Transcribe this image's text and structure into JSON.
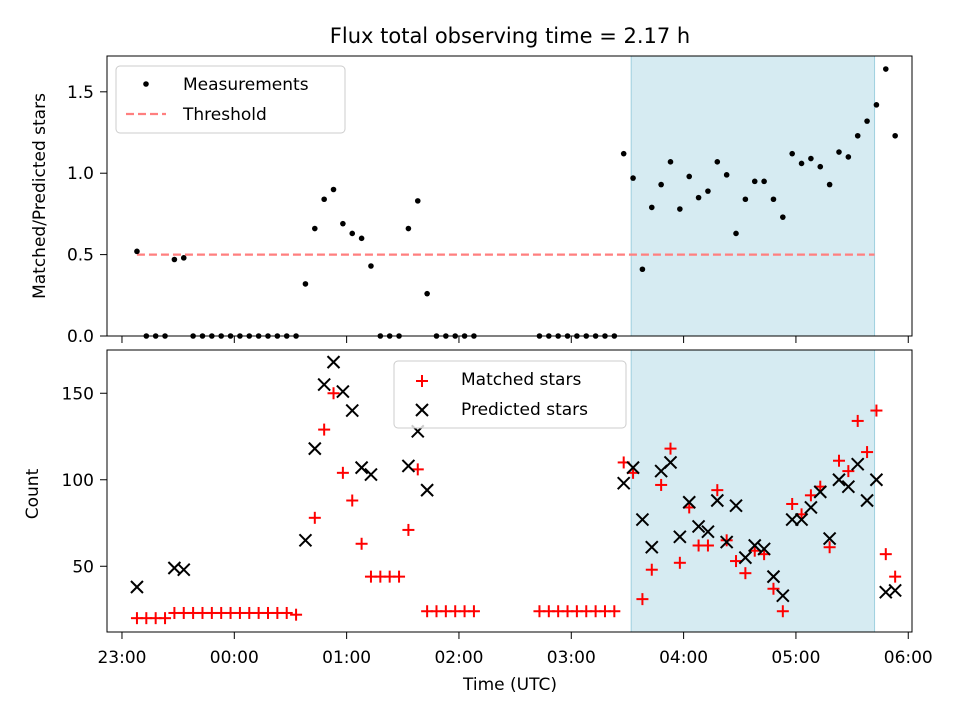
{
  "chart_data": [
    {
      "type": "scatter",
      "title": "Flux total observing time = 2.17 h",
      "ylabel": "Matched/Predicted stars",
      "xlim": [
        "22:52",
        "06:02"
      ],
      "ylim": [
        0,
        1.72
      ],
      "yticks": [
        "0.0",
        "0.5",
        "1.0",
        "1.5"
      ],
      "highlight_span": [
        "03:32",
        "05:42"
      ],
      "legend": {
        "placement": "upper left",
        "entries": [
          "Measurements",
          "Threshold"
        ]
      },
      "threshold": {
        "name": "Threshold",
        "value": 0.5,
        "x_start": "23:08",
        "x_end": "05:42",
        "color": "#ff7f7f"
      },
      "series": [
        {
          "name": "Measurements",
          "color": "#000000",
          "points": [
            [
              "23:08",
              0.52
            ],
            [
              "23:13",
              0.0
            ],
            [
              "23:18",
              0.0
            ],
            [
              "23:23",
              0.0
            ],
            [
              "23:28",
              0.47
            ],
            [
              "23:33",
              0.48
            ],
            [
              "23:38",
              0.0
            ],
            [
              "23:43",
              0.0
            ],
            [
              "23:48",
              0.0
            ],
            [
              "23:53",
              0.0
            ],
            [
              "23:58",
              0.0
            ],
            [
              "00:03",
              0.0
            ],
            [
              "00:08",
              0.0
            ],
            [
              "00:13",
              0.0
            ],
            [
              "00:18",
              0.0
            ],
            [
              "00:23",
              0.0
            ],
            [
              "00:28",
              0.0
            ],
            [
              "00:33",
              0.0
            ],
            [
              "00:38",
              0.32
            ],
            [
              "00:43",
              0.66
            ],
            [
              "00:48",
              0.84
            ],
            [
              "00:53",
              0.9
            ],
            [
              "00:58",
              0.69
            ],
            [
              "01:03",
              0.63
            ],
            [
              "01:08",
              0.6
            ],
            [
              "01:13",
              0.43
            ],
            [
              "01:18",
              0.0
            ],
            [
              "01:23",
              0.0
            ],
            [
              "01:28",
              0.0
            ],
            [
              "01:33",
              0.66
            ],
            [
              "01:38",
              0.83
            ],
            [
              "01:43",
              0.26
            ],
            [
              "01:48",
              0.0
            ],
            [
              "01:53",
              0.0
            ],
            [
              "01:58",
              0.0
            ],
            [
              "02:03",
              0.0
            ],
            [
              "02:08",
              0.0
            ],
            [
              "02:43",
              0.0
            ],
            [
              "02:48",
              0.0
            ],
            [
              "02:53",
              0.0
            ],
            [
              "02:58",
              0.0
            ],
            [
              "03:03",
              0.0
            ],
            [
              "03:08",
              0.0
            ],
            [
              "03:13",
              0.0
            ],
            [
              "03:18",
              0.0
            ],
            [
              "03:23",
              0.0
            ],
            [
              "03:28",
              1.12
            ],
            [
              "03:33",
              0.97
            ],
            [
              "03:38",
              0.41
            ],
            [
              "03:43",
              0.79
            ],
            [
              "03:48",
              0.93
            ],
            [
              "03:53",
              1.07
            ],
            [
              "03:58",
              0.78
            ],
            [
              "04:03",
              0.98
            ],
            [
              "04:08",
              0.85
            ],
            [
              "04:13",
              0.89
            ],
            [
              "04:18",
              1.07
            ],
            [
              "04:23",
              0.99
            ],
            [
              "04:28",
              0.63
            ],
            [
              "04:33",
              0.84
            ],
            [
              "04:38",
              0.95
            ],
            [
              "04:43",
              0.95
            ],
            [
              "04:48",
              0.84
            ],
            [
              "04:53",
              0.73
            ],
            [
              "04:58",
              1.12
            ],
            [
              "05:03",
              1.06
            ],
            [
              "05:08",
              1.09
            ],
            [
              "05:13",
              1.04
            ],
            [
              "05:18",
              0.93
            ],
            [
              "05:23",
              1.13
            ],
            [
              "05:28",
              1.1
            ],
            [
              "05:33",
              1.23
            ],
            [
              "05:38",
              1.32
            ],
            [
              "05:43",
              1.42
            ],
            [
              "05:48",
              1.64
            ],
            [
              "05:53",
              1.23
            ]
          ]
        }
      ]
    },
    {
      "type": "scatter",
      "xlabel": "Time (UTC)",
      "ylabel": "Count",
      "xlim": [
        "22:52",
        "06:02"
      ],
      "ylim": [
        12,
        175
      ],
      "xticks": [
        "23:00",
        "00:00",
        "01:00",
        "02:00",
        "03:00",
        "04:00",
        "05:00",
        "06:00"
      ],
      "yticks": [
        "50",
        "100",
        "150"
      ],
      "highlight_span": [
        "03:32",
        "05:42"
      ],
      "legend": {
        "placement": "upper center",
        "entries": [
          "Matched stars",
          "Predicted stars"
        ]
      },
      "series": [
        {
          "name": "Matched stars",
          "marker": "plus",
          "color": "#ff0000",
          "points": [
            [
              "23:08",
              20
            ],
            [
              "23:13",
              20
            ],
            [
              "23:18",
              20
            ],
            [
              "23:23",
              20
            ],
            [
              "23:28",
              23
            ],
            [
              "23:33",
              23
            ],
            [
              "23:38",
              23
            ],
            [
              "23:43",
              23
            ],
            [
              "23:48",
              23
            ],
            [
              "23:53",
              23
            ],
            [
              "23:58",
              23
            ],
            [
              "00:03",
              23
            ],
            [
              "00:08",
              23
            ],
            [
              "00:13",
              23
            ],
            [
              "00:18",
              23
            ],
            [
              "00:23",
              23
            ],
            [
              "00:28",
              23
            ],
            [
              "00:33",
              22
            ],
            [
              "00:43",
              78
            ],
            [
              "00:48",
              129
            ],
            [
              "00:53",
              150
            ],
            [
              "00:58",
              104
            ],
            [
              "01:03",
              88
            ],
            [
              "01:08",
              63
            ],
            [
              "01:13",
              44
            ],
            [
              "01:18",
              44
            ],
            [
              "01:23",
              44
            ],
            [
              "01:28",
              44
            ],
            [
              "01:33",
              71
            ],
            [
              "01:38",
              106
            ],
            [
              "01:43",
              24
            ],
            [
              "01:48",
              24
            ],
            [
              "01:53",
              24
            ],
            [
              "01:58",
              24
            ],
            [
              "02:03",
              24
            ],
            [
              "02:08",
              24
            ],
            [
              "02:43",
              24
            ],
            [
              "02:48",
              24
            ],
            [
              "02:53",
              24
            ],
            [
              "02:58",
              24
            ],
            [
              "03:03",
              24
            ],
            [
              "03:08",
              24
            ],
            [
              "03:13",
              24
            ],
            [
              "03:18",
              24
            ],
            [
              "03:23",
              24
            ],
            [
              "03:28",
              110
            ],
            [
              "03:33",
              104
            ],
            [
              "03:38",
              31
            ],
            [
              "03:43",
              48
            ],
            [
              "03:48",
              97
            ],
            [
              "03:53",
              118
            ],
            [
              "03:58",
              52
            ],
            [
              "04:03",
              84
            ],
            [
              "04:08",
              62
            ],
            [
              "04:13",
              62
            ],
            [
              "04:18",
              94
            ],
            [
              "04:23",
              65
            ],
            [
              "04:28",
              53
            ],
            [
              "04:33",
              46
            ],
            [
              "04:38",
              59
            ],
            [
              "04:43",
              57
            ],
            [
              "04:48",
              37
            ],
            [
              "04:53",
              24
            ],
            [
              "04:58",
              86
            ],
            [
              "05:03",
              80
            ],
            [
              "05:08",
              91
            ],
            [
              "05:13",
              96
            ],
            [
              "05:18",
              61
            ],
            [
              "05:23",
              111
            ],
            [
              "05:28",
              105
            ],
            [
              "05:33",
              134
            ],
            [
              "05:38",
              116
            ],
            [
              "05:43",
              140
            ],
            [
              "05:48",
              57
            ],
            [
              "05:53",
              44
            ]
          ]
        },
        {
          "name": "Predicted stars",
          "marker": "x",
          "color": "#000000",
          "points": [
            [
              "23:08",
              38
            ],
            [
              "23:28",
              49
            ],
            [
              "23:33",
              48
            ],
            [
              "00:38",
              65
            ],
            [
              "00:43",
              118
            ],
            [
              "00:48",
              155
            ],
            [
              "00:53",
              168
            ],
            [
              "00:58",
              151
            ],
            [
              "01:03",
              140
            ],
            [
              "01:08",
              107
            ],
            [
              "01:13",
              103
            ],
            [
              "01:33",
              108
            ],
            [
              "01:38",
              128
            ],
            [
              "01:43",
              94
            ],
            [
              "03:28",
              98
            ],
            [
              "03:33",
              107
            ],
            [
              "03:38",
              77
            ],
            [
              "03:43",
              61
            ],
            [
              "03:48",
              105
            ],
            [
              "03:53",
              110
            ],
            [
              "03:58",
              67
            ],
            [
              "04:03",
              87
            ],
            [
              "04:08",
              73
            ],
            [
              "04:13",
              70
            ],
            [
              "04:18",
              88
            ],
            [
              "04:23",
              64
            ],
            [
              "04:28",
              85
            ],
            [
              "04:33",
              55
            ],
            [
              "04:38",
              62
            ],
            [
              "04:43",
              60
            ],
            [
              "04:48",
              44
            ],
            [
              "04:53",
              33
            ],
            [
              "04:58",
              77
            ],
            [
              "05:03",
              77
            ],
            [
              "05:08",
              84
            ],
            [
              "05:13",
              93
            ],
            [
              "05:18",
              66
            ],
            [
              "05:23",
              100
            ],
            [
              "05:28",
              96
            ],
            [
              "05:33",
              109
            ],
            [
              "05:38",
              88
            ],
            [
              "05:43",
              100
            ],
            [
              "05:48",
              35
            ],
            [
              "05:53",
              36
            ]
          ]
        }
      ]
    }
  ]
}
